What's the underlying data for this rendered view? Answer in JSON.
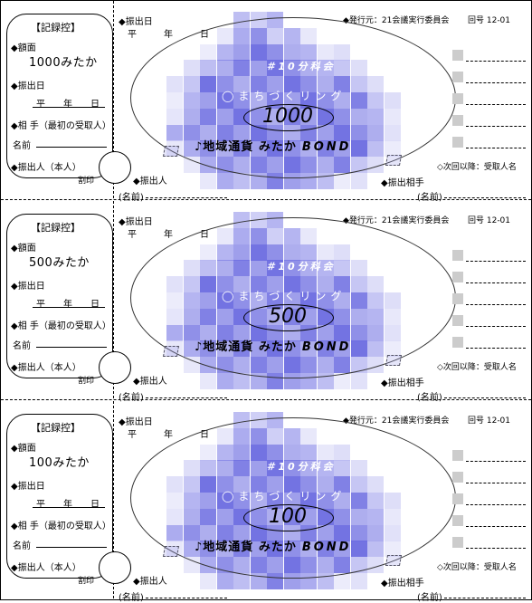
{
  "coupons": [
    {
      "stub": {
        "title": "【記録控】",
        "amount_label": "◆額面",
        "amount": "1000みたか",
        "date_label": "◆振出日",
        "date_fields": "平　　年　　日",
        "partner_label": "◆相 手（最初の受取人）",
        "name_label": "名前",
        "issuer_label": "◆振出人（本人）",
        "seal_label": "割印"
      },
      "main": {
        "issue_date_label": "◆振出日",
        "issue_date_fields": "平　　　年　　　日",
        "publisher": "◆発行元：21会議実行委員会",
        "serial": "回号 12-01",
        "section_badge": "＃10分科会",
        "ring_text": "◯まちづくリング",
        "amount": "1000",
        "brand": "♪地域通貨 みたか",
        "brand_bond": "BOND",
        "issuer_label": "◆振出人",
        "name_label_left": "(名前)",
        "recipient_label": "◆振出相手",
        "name_label_right": "(名前)",
        "next_recipient": "◇次回以降：受取人名"
      }
    },
    {
      "stub": {
        "title": "【記録控】",
        "amount_label": "◆額面",
        "amount": "500みたか",
        "date_label": "◆振出日",
        "date_fields": "平　　年　　日",
        "partner_label": "◆相 手（最初の受取人）",
        "name_label": "名前",
        "issuer_label": "◆振出人（本人）",
        "seal_label": "割印"
      },
      "main": {
        "issue_date_label": "◆振出日",
        "issue_date_fields": "平　　　年　　　日",
        "publisher": "◆発行元：21会議実行委員会",
        "serial": "回号 12-01",
        "section_badge": "＃10分科会",
        "ring_text": "◯まちづくリング",
        "amount": "500",
        "brand": "♪地域通貨 みたか",
        "brand_bond": "BOND",
        "issuer_label": "◆振出人",
        "name_label_left": "(名前)",
        "recipient_label": "◆振出相手",
        "name_label_right": "(名前)",
        "next_recipient": "◇次回以降：受取人名"
      }
    },
    {
      "stub": {
        "title": "【記録控】",
        "amount_label": "◆額面",
        "amount": "100みたか",
        "date_label": "◆振出日",
        "date_fields": "平　　年　　日",
        "partner_label": "◆相 手（最初の受取人）",
        "name_label": "名前",
        "issuer_label": "◆振出人（本人）",
        "seal_label": "割印"
      },
      "main": {
        "issue_date_label": "◆振出日",
        "issue_date_fields": "平　　　年　　　日",
        "publisher": "◆発行元：21会議実行委員会",
        "serial": "回号 12-01",
        "section_badge": "＃10分科会",
        "ring_text": "◯まちづくリング",
        "amount": "100",
        "brand": "♪地域通貨 みたか",
        "brand_bond": "BOND",
        "issuer_label": "◆振出人",
        "name_label_left": "(名前)",
        "recipient_label": "◆振出相手",
        "name_label_right": "(名前)",
        "next_recipient": "◇次回以降：受取人名"
      }
    }
  ],
  "colors": {
    "mosaic_dark": "#6b6be0",
    "mosaic_light": "#c9c9f4",
    "text": "#000000"
  }
}
